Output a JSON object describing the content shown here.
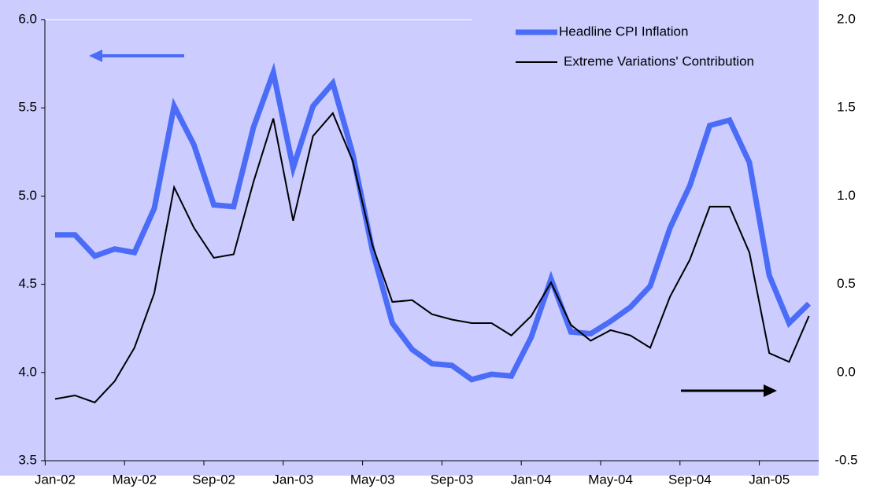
{
  "chart_data": {
    "type": "line",
    "categories": [
      "Jan-02",
      null,
      null,
      null,
      "May-02",
      null,
      null,
      null,
      "Sep-02",
      null,
      null,
      null,
      "Jan-03",
      null,
      null,
      null,
      "May-03",
      null,
      null,
      null,
      "Sep-03",
      null,
      null,
      null,
      "Jan-04",
      null,
      null,
      null,
      "May-04",
      null,
      null,
      null,
      "Sep-04",
      null,
      null,
      null,
      "Jan-05",
      null,
      null
    ],
    "series": [
      {
        "name": "Headline CPI Inflation",
        "color": "#4a6cf7",
        "axis": "y",
        "values": [
          4.78,
          4.78,
          4.66,
          4.7,
          4.68,
          4.93,
          5.51,
          5.29,
          4.95,
          4.94,
          5.39,
          5.7,
          5.16,
          5.51,
          5.64,
          5.24,
          4.69,
          4.28,
          4.13,
          4.05,
          4.04,
          3.96,
          3.99,
          3.98,
          4.2,
          4.53,
          4.23,
          4.22,
          4.29,
          4.37,
          4.49,
          4.82,
          5.06,
          5.4,
          5.43,
          5.19,
          4.55,
          4.28,
          4.39
        ]
      },
      {
        "name": "Extreme Variations' Contribution",
        "color": "#000000",
        "axis": "y2",
        "values": [
          -0.15,
          -0.13,
          -0.17,
          -0.05,
          0.14,
          0.45,
          1.05,
          0.82,
          0.65,
          0.67,
          1.08,
          1.44,
          0.86,
          1.34,
          1.47,
          1.2,
          0.72,
          0.4,
          0.41,
          0.33,
          0.3,
          0.28,
          0.28,
          0.21,
          0.32,
          0.51,
          0.27,
          0.18,
          0.24,
          0.21,
          0.14,
          0.43,
          0.64,
          0.94,
          0.94,
          0.68,
          0.11,
          0.06,
          0.32
        ]
      }
    ],
    "ylim": [
      3.5,
      6.0
    ],
    "yticks": [
      {
        "value": 3.5,
        "label": "3.5"
      },
      {
        "value": 4.0,
        "label": "4.0"
      },
      {
        "value": 4.5,
        "label": "4.5"
      },
      {
        "value": 5.0,
        "label": "5.0"
      },
      {
        "value": 5.5,
        "label": "5.5"
      },
      {
        "value": 6.0,
        "label": "6.0"
      }
    ],
    "y2lim": [
      -0.5,
      2.0
    ],
    "y2ticks": [
      -0.5,
      {
        "value": 0.0,
        "label": "0.0"
      },
      0.5,
      {
        "value": 1.0,
        "label": "1.0"
      },
      1.5,
      {
        "value": 2.0,
        "label": "2.0"
      }
    ],
    "legend": "top-right",
    "grid": false
  }
}
